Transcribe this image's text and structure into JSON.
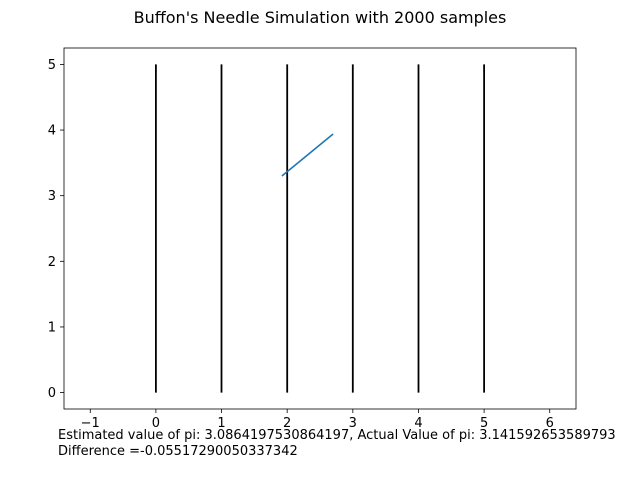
{
  "chart_data": {
    "type": "line",
    "title": "Buffon's Needle Simulation with 2000 samples",
    "xlabel": "",
    "ylabel": "",
    "xlim": [
      -1.4,
      6.4
    ],
    "ylim": [
      -0.25,
      5.25
    ],
    "xticks": [
      -1,
      0,
      1,
      2,
      3,
      4,
      5,
      6
    ],
    "yticks": [
      0,
      1,
      2,
      3,
      4,
      5
    ],
    "grid": false,
    "line_color": "#000000",
    "needle_color": "#1f77b4",
    "series": [
      {
        "x": [
          0,
          0
        ],
        "y": [
          0,
          5
        ]
      },
      {
        "x": [
          1,
          1
        ],
        "y": [
          0,
          5
        ]
      },
      {
        "x": [
          2,
          2
        ],
        "y": [
          0,
          5
        ]
      },
      {
        "x": [
          3,
          3
        ],
        "y": [
          0,
          5
        ]
      },
      {
        "x": [
          4,
          4
        ],
        "y": [
          0,
          5
        ]
      },
      {
        "x": [
          5,
          5
        ],
        "y": [
          0,
          5
        ]
      },
      {
        "x": [
          1.92,
          2.7
        ],
        "y": [
          3.3,
          3.94
        ]
      }
    ]
  },
  "annotations": {
    "line1": "Estimated value of pi: 3.0864197530864197, Actual Value of pi: 3.141592653589793",
    "line2": "Difference =-0.05517290050337342"
  }
}
